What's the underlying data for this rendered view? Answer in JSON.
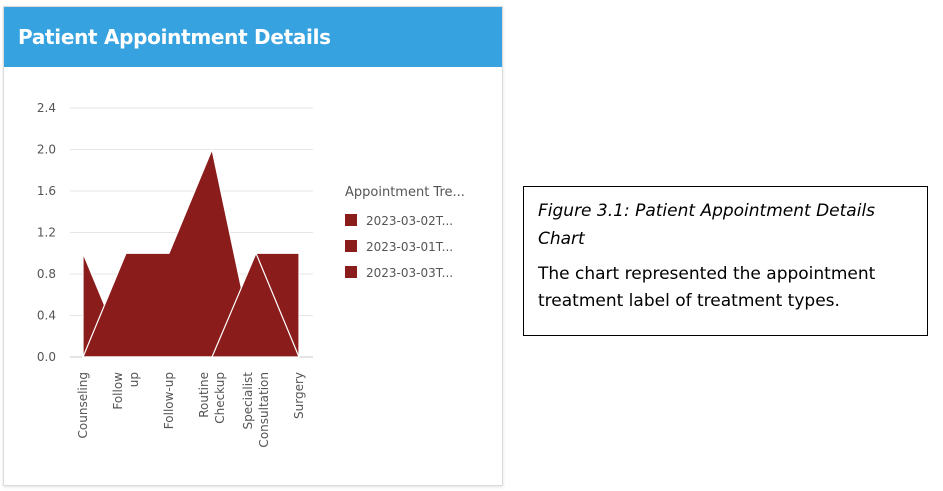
{
  "card": {
    "title": "Patient Appointment Details"
  },
  "chart_data": {
    "type": "area",
    "title": "",
    "xlabel": "",
    "ylabel": "",
    "categories": [
      "Counseling",
      "Follow up",
      "Follow-up",
      "Routine Checkup",
      "Specialist Consultation",
      "Surgery"
    ],
    "ylim": [
      0,
      2.4
    ],
    "yticks": [
      "0.0",
      "0.4",
      "0.8",
      "1.2",
      "1.6",
      "2.0",
      "2.4"
    ],
    "grid": true,
    "legend": {
      "title": "Appointment Tre...",
      "placement": "right"
    },
    "series": [
      {
        "name": "2023-03-02T...",
        "values": [
          1,
          0,
          0,
          0,
          1,
          1
        ]
      },
      {
        "name": "2023-03-01T...",
        "values": [
          0,
          1,
          1,
          2,
          0,
          0
        ]
      },
      {
        "name": "2023-03-03T...",
        "values": [
          0,
          0,
          0,
          0,
          1,
          0
        ]
      }
    ],
    "colors": [
      "#8b1c1c",
      "#8b1c1c",
      "#8b1c1c"
    ]
  },
  "caption": {
    "title": "Figure 3.1: Patient Appointment Details Chart",
    "body": "The chart represented the appointment treatment label of treatment types."
  }
}
